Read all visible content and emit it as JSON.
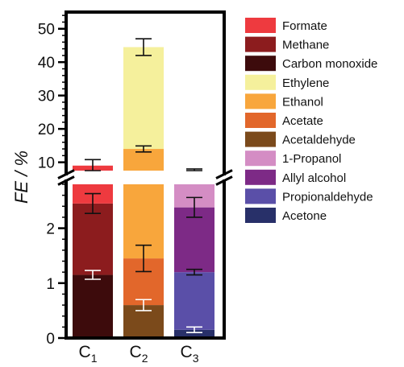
{
  "chart_data": {
    "type": "bar",
    "stacked": true,
    "broken_axis": true,
    "ylabel": "FE / %",
    "categories": [
      {
        "base": "C",
        "sub": "1"
      },
      {
        "base": "C",
        "sub": "2"
      },
      {
        "base": "C",
        "sub": "3"
      }
    ],
    "lower_axis": {
      "range": [
        0,
        2.8
      ],
      "ticks": [
        0,
        1,
        2
      ]
    },
    "upper_axis": {
      "range": [
        7.5,
        55
      ],
      "ticks": [
        10,
        20,
        30,
        40,
        50
      ]
    },
    "series": [
      {
        "name": "Formate",
        "color": "#ee3a3f"
      },
      {
        "name": "Methane",
        "color": "#8c1c1e"
      },
      {
        "name": "Carbon monoxide",
        "color": "#3d0b0c"
      },
      {
        "name": "Ethylene",
        "color": "#f5f09c"
      },
      {
        "name": "Ethanol",
        "color": "#f8a63c"
      },
      {
        "name": "Acetate",
        "color": "#e2672b"
      },
      {
        "name": "Acetaldehyde",
        "color": "#7b4a1b"
      },
      {
        "name": "1-Propanol",
        "color": "#d48dc4"
      },
      {
        "name": "Allyl alcohol",
        "color": "#7d2a86"
      },
      {
        "name": "Propionaldehyde",
        "color": "#5a4fa8"
      },
      {
        "name": "Acetone",
        "color": "#283069"
      }
    ],
    "stacks": [
      {
        "category": "C1",
        "segments": [
          {
            "series": "Carbon monoxide",
            "from": 0,
            "to": 1.15
          },
          {
            "series": "Methane",
            "from": 1.15,
            "to": 2.45
          },
          {
            "series": "Formate",
            "from": 2.45,
            "to": 9.0
          }
        ],
        "error_bars": [
          {
            "at": 1.15,
            "err": 0.08,
            "color": "#ffffff"
          },
          {
            "at": 2.45,
            "err": 0.18,
            "color": "#111111"
          },
          {
            "at": 9.0,
            "err": 1.8,
            "color": "#111111"
          }
        ]
      },
      {
        "category": "C2",
        "segments": [
          {
            "series": "Acetaldehyde",
            "from": 0,
            "to": 0.6
          },
          {
            "series": "Acetate",
            "from": 0.6,
            "to": 1.45
          },
          {
            "series": "Ethanol",
            "from": 1.45,
            "to": 14.0
          },
          {
            "series": "Ethylene",
            "from": 14.0,
            "to": 44.5
          }
        ],
        "error_bars": [
          {
            "at": 0.6,
            "err": 0.1,
            "color": "#ffffff"
          },
          {
            "at": 1.45,
            "err": 0.24,
            "color": "#111111"
          },
          {
            "at": 14.0,
            "err": 0.9,
            "color": "#111111"
          },
          {
            "at": 44.5,
            "err": 2.5,
            "color": "#111111"
          }
        ]
      },
      {
        "category": "C3",
        "segments": [
          {
            "series": "Acetone",
            "from": 0,
            "to": 0.15
          },
          {
            "series": "Propionaldehyde",
            "from": 0.15,
            "to": 1.2
          },
          {
            "series": "Allyl alcohol",
            "from": 1.2,
            "to": 2.38
          },
          {
            "series": "1-Propanol",
            "from": 2.38,
            "to": 7.0
          }
        ],
        "error_bars": [
          {
            "at": 0.15,
            "err": 0.05,
            "color": "#ffffff"
          },
          {
            "at": 1.2,
            "err": 0.05,
            "color": "#111111"
          },
          {
            "at": 2.38,
            "err": 0.18,
            "color": "#111111"
          },
          {
            "at": 7.0,
            "err": 1.0,
            "color": "#111111"
          }
        ]
      }
    ],
    "legend_position": "right"
  }
}
